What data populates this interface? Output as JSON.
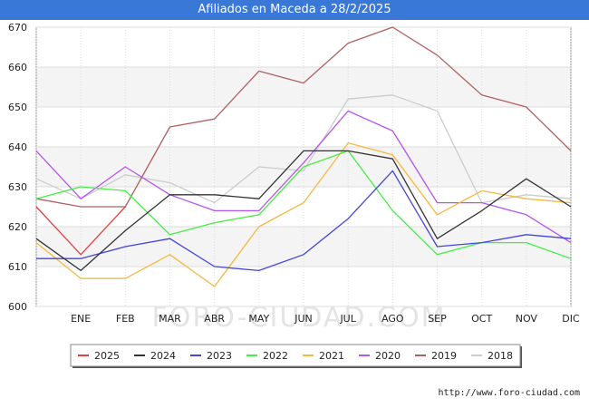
{
  "header": {
    "title": "Afiliados en Maceda a 28/2/2025"
  },
  "watermark": "FORO-CIUDAD.COM",
  "source": "http://www.foro-ciudad.com",
  "chart_data": {
    "type": "line",
    "title": "Afiliados en Maceda a 28/2/2025",
    "xlabel": "",
    "ylabel": "",
    "categories": [
      "",
      "ENE",
      "FEB",
      "MAR",
      "ABR",
      "MAY",
      "JUN",
      "JUL",
      "AGO",
      "SEP",
      "OCT",
      "NOV",
      "DIC"
    ],
    "ylim": [
      600,
      670
    ],
    "yticks": [
      600,
      610,
      620,
      630,
      640,
      650,
      660,
      670
    ],
    "grid": true,
    "legend_position": "bottom",
    "series": [
      {
        "name": "2025",
        "color": "#e83e3e",
        "values": [
          625,
          613,
          625,
          null,
          null,
          null,
          null,
          null,
          null,
          null,
          null,
          null,
          null
        ]
      },
      {
        "name": "2024",
        "color": "#333333",
        "values": [
          617,
          609,
          619,
          628,
          628,
          627,
          639,
          639,
          637,
          617,
          624,
          632,
          625
        ]
      },
      {
        "name": "2023",
        "color": "#4444dd",
        "values": [
          612,
          612,
          615,
          617,
          610,
          609,
          613,
          622,
          634,
          615,
          616,
          618,
          617
        ]
      },
      {
        "name": "2022",
        "color": "#44ee44",
        "values": [
          627,
          630,
          629,
          618,
          621,
          623,
          635,
          639,
          624,
          613,
          616,
          616,
          612
        ]
      },
      {
        "name": "2021",
        "color": "#f5b940",
        "values": [
          616,
          607,
          607,
          613,
          605,
          620,
          626,
          641,
          638,
          623,
          629,
          627,
          626
        ]
      },
      {
        "name": "2020",
        "color": "#b555ee",
        "values": [
          639,
          627,
          635,
          628,
          624,
          624,
          636,
          649,
          644,
          626,
          626,
          623,
          616
        ]
      },
      {
        "name": "2019",
        "color": "#b06060",
        "values": [
          627,
          625,
          625,
          645,
          647,
          659,
          656,
          666,
          670,
          663,
          653,
          650,
          639
        ]
      },
      {
        "name": "2018",
        "color": "#cccccc",
        "values": [
          632,
          627,
          633,
          631,
          626,
          635,
          634,
          652,
          653,
          649,
          626,
          628,
          627
        ]
      }
    ]
  }
}
